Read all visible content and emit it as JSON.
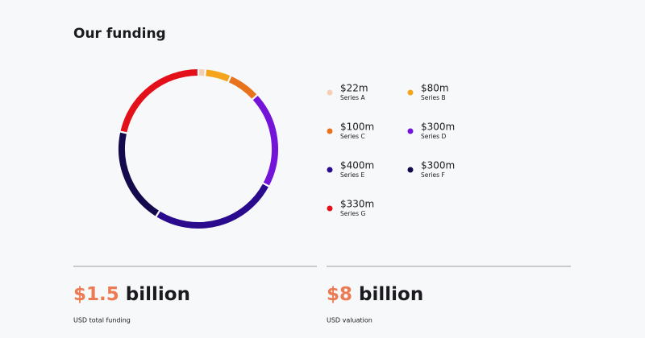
{
  "title": "Our funding",
  "chart_data": {
    "type": "donut",
    "categories": [
      "Series A",
      "Series B",
      "Series C",
      "Series D",
      "Series E",
      "Series F",
      "Series G"
    ],
    "values": [
      22,
      80,
      100,
      300,
      400,
      300,
      330
    ],
    "value_labels": [
      "$22m",
      "$80m",
      "$100m",
      "$300m",
      "$400m",
      "$300m",
      "$330m"
    ],
    "colors": [
      "#f4cfb6",
      "#f4a51c",
      "#e8731c",
      "#7414d8",
      "#2a0b8e",
      "#14094c",
      "#e3101a"
    ]
  },
  "stats": [
    {
      "value": "$1.5",
      "unit": "billion",
      "label": "USD total funding"
    },
    {
      "value": "$8",
      "unit": "billion",
      "label": "USD valuation"
    }
  ]
}
